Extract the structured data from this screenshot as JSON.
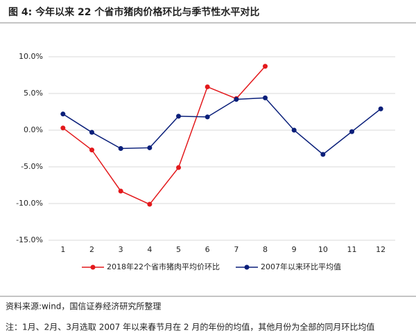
{
  "chart_data": {
    "type": "line",
    "title": "图 4: 今年以来 22 个省市猪肉价格环比与季节性水平对比",
    "categories": [
      "1",
      "2",
      "3",
      "4",
      "5",
      "6",
      "7",
      "8",
      "9",
      "10",
      "11",
      "12"
    ],
    "series": [
      {
        "name": "2018年22个省市猪肉平均价环比",
        "color": "#e3191c",
        "values": [
          0.3,
          -2.7,
          -8.3,
          -10.1,
          -5.1,
          5.9,
          4.3,
          8.7,
          null,
          null,
          null,
          null
        ]
      },
      {
        "name": "2007年以来环比平均值",
        "color": "#0a1f7a",
        "values": [
          2.2,
          -0.3,
          -2.5,
          -2.4,
          1.9,
          1.8,
          4.2,
          4.4,
          0.0,
          -3.3,
          -0.2,
          2.9
        ]
      }
    ],
    "ylim": [
      -15,
      10
    ],
    "yticks": [
      {
        "value": -15,
        "label": "-15.0%"
      },
      {
        "value": -10,
        "label": "-10.0%"
      },
      {
        "value": -5,
        "label": "-5.0%"
      },
      {
        "value": 0,
        "label": "0.0%"
      },
      {
        "value": 5,
        "label": "5.0%"
      },
      {
        "value": 10,
        "label": "10.0%"
      }
    ],
    "grid": true,
    "legend": "bottom"
  },
  "source": "资料来源:wind，国信证券经济研究所整理",
  "note": "注：1月、2月、3月选取 2007 年以来春节月在 2 月的年份的均值，其他月份为全部的同月环比均值"
}
